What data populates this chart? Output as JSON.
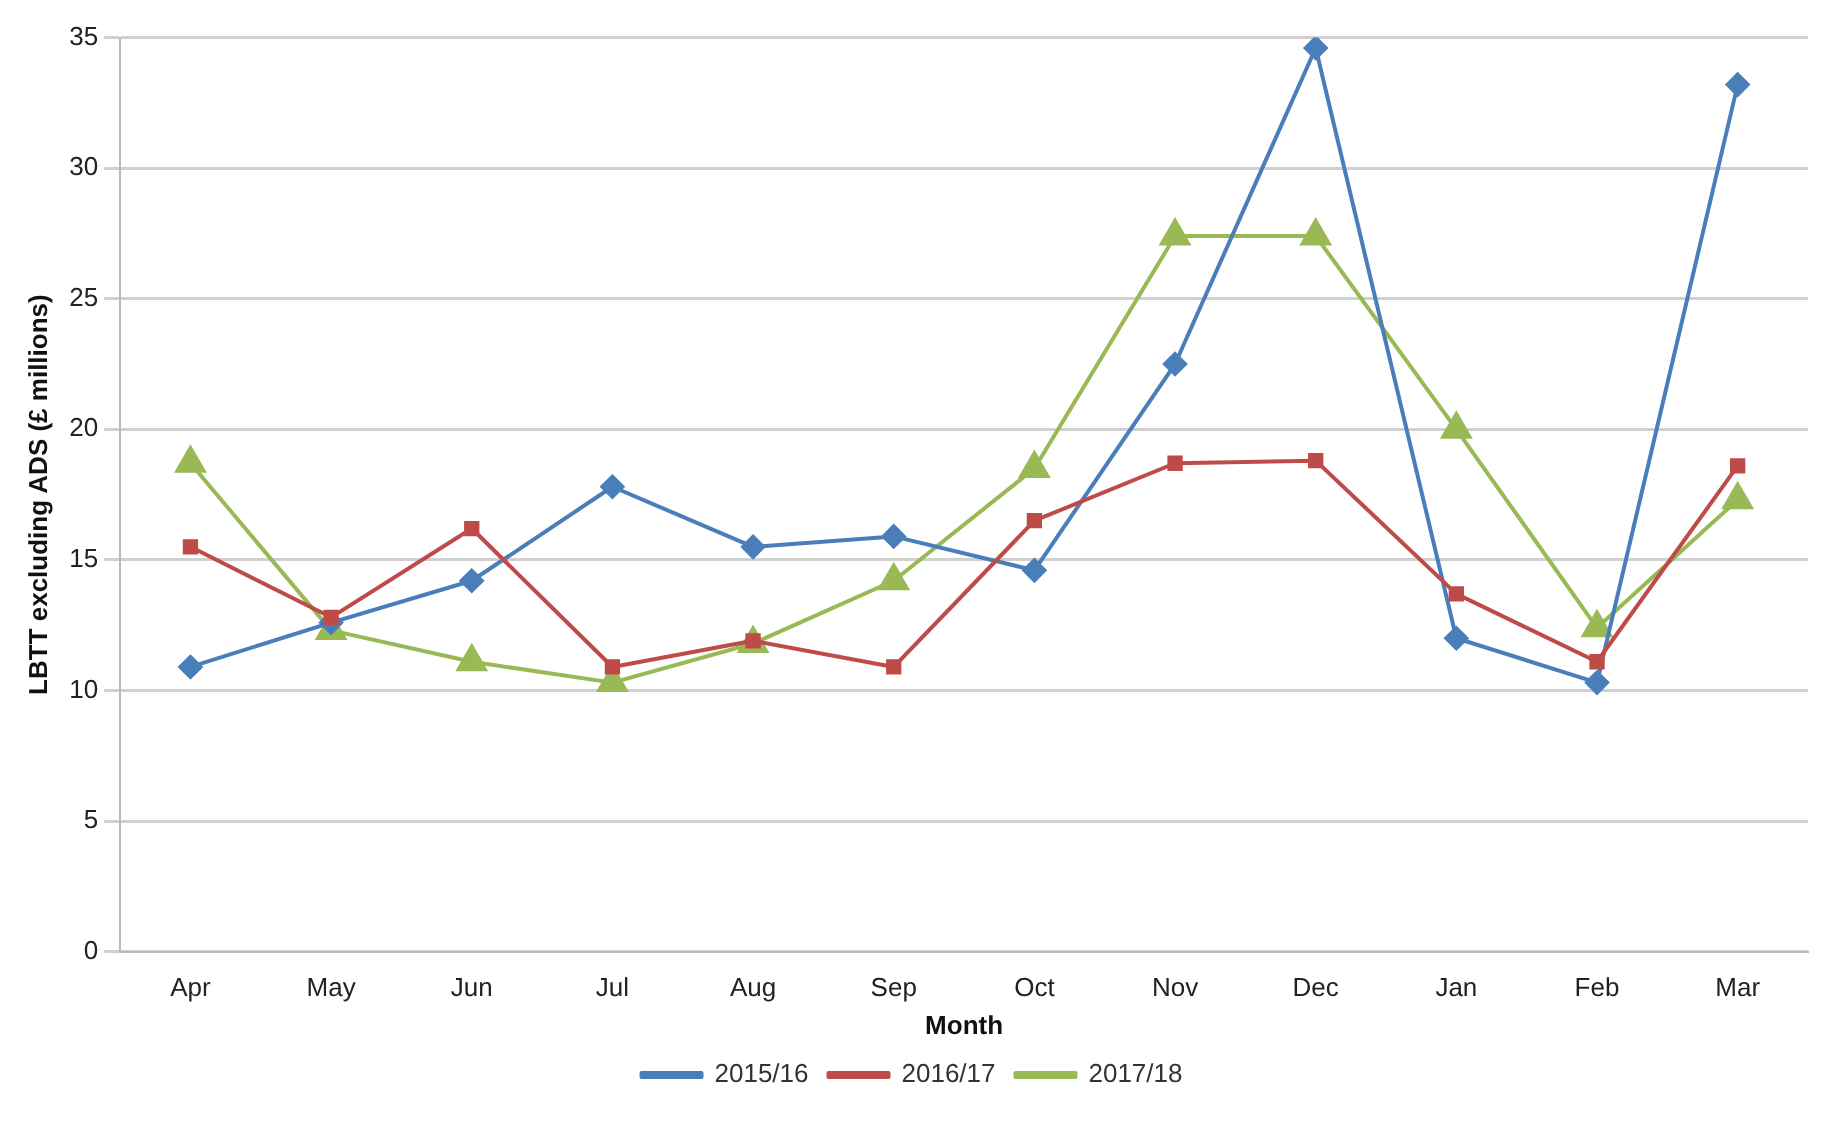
{
  "chart_data": {
    "type": "line",
    "xlabel": "Month",
    "ylabel": "LBTT excluding ADS (£ millions)",
    "categories": [
      "Apr",
      "May",
      "Jun",
      "Jul",
      "Aug",
      "Sep",
      "Oct",
      "Nov",
      "Dec",
      "Jan",
      "Feb",
      "Mar"
    ],
    "series": [
      {
        "name": "2015/16",
        "color": "#4a7ebb",
        "marker": "diamond",
        "values": [
          10.9,
          12.6,
          14.2,
          17.8,
          15.5,
          15.9,
          14.6,
          22.5,
          34.6,
          12.0,
          10.3,
          33.2
        ]
      },
      {
        "name": "2016/17",
        "color": "#be4b48",
        "marker": "square",
        "values": [
          15.5,
          12.8,
          16.2,
          10.9,
          11.9,
          10.9,
          16.5,
          18.7,
          18.8,
          13.7,
          11.1,
          18.6
        ]
      },
      {
        "name": "2017/18",
        "color": "#98b954",
        "marker": "triangle",
        "values": [
          18.7,
          12.3,
          11.1,
          10.3,
          11.8,
          14.2,
          18.5,
          27.4,
          27.4,
          20.0,
          12.4,
          17.3
        ]
      }
    ],
    "ylim": [
      0,
      35
    ],
    "yticks": [
      0,
      5,
      10,
      15,
      20,
      25,
      30,
      35
    ],
    "grid": "y",
    "legend": "bottom",
    "line_style": "solid"
  }
}
